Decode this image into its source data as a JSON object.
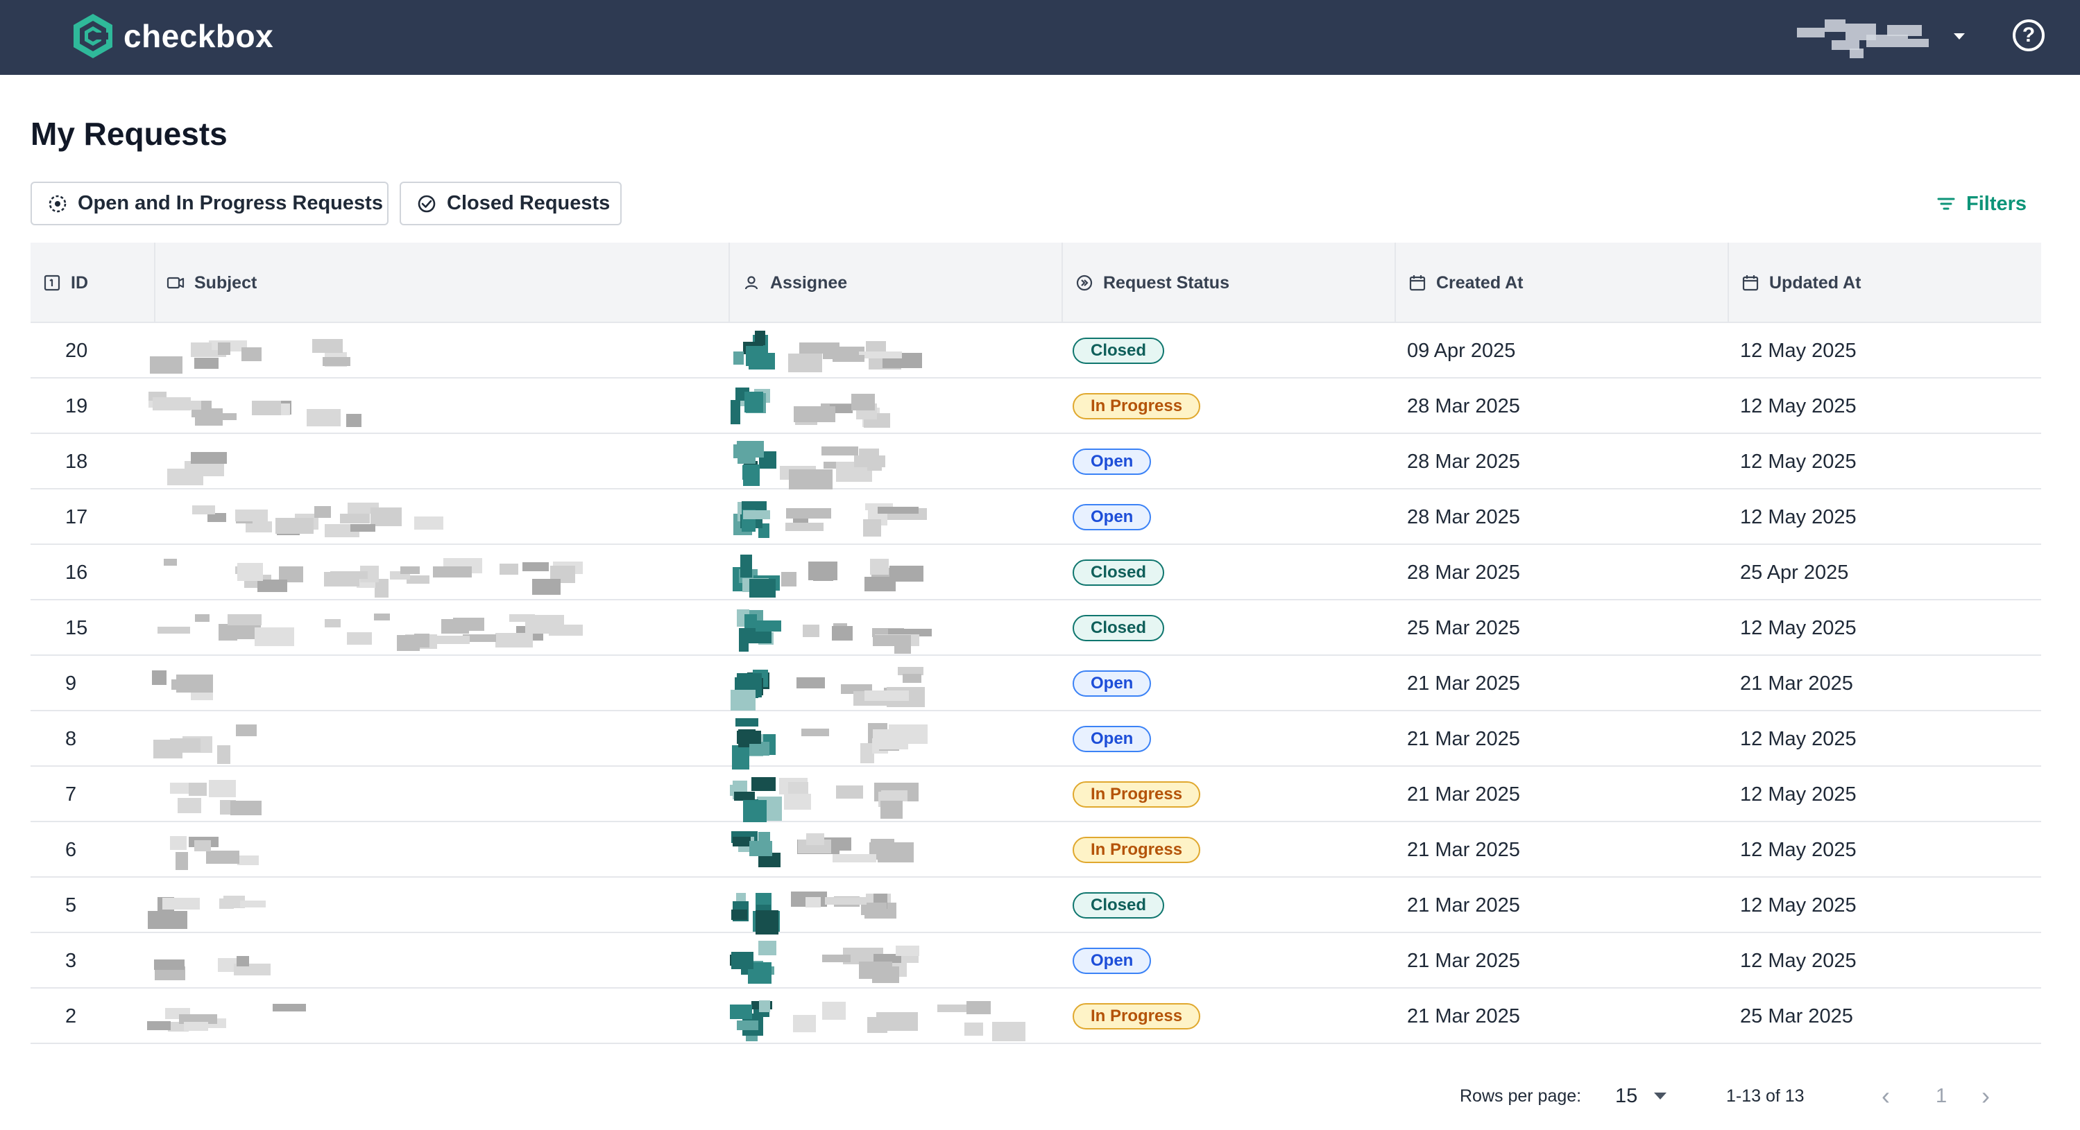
{
  "app": {
    "name": "checkbox",
    "brand_color": "#2fb99a",
    "header_bg": "#2e3a52",
    "accent": "#0d9478"
  },
  "header": {
    "user_menu_icon": "chevron-down-icon",
    "help_icon": "help-circle-icon",
    "help_glyph": "?"
  },
  "page": {
    "title": "My Requests"
  },
  "tabs": {
    "open_label": "Open and In Progress Requests",
    "closed_label": "Closed Requests",
    "filters_label": "Filters"
  },
  "table": {
    "columns": {
      "id": "ID",
      "subject": "Subject",
      "assignee": "Assignee",
      "status": "Request Status",
      "created": "Created At",
      "updated": "Updated At"
    },
    "rows": [
      {
        "id": "20",
        "status": "Closed",
        "created": "09 Apr 2025",
        "updated": "12 May 2025"
      },
      {
        "id": "19",
        "status": "In Progress",
        "created": "28 Mar 2025",
        "updated": "12 May 2025"
      },
      {
        "id": "18",
        "status": "Open",
        "created": "28 Mar 2025",
        "updated": "12 May 2025"
      },
      {
        "id": "17",
        "status": "Open",
        "created": "28 Mar 2025",
        "updated": "12 May 2025"
      },
      {
        "id": "16",
        "status": "Closed",
        "created": "28 Mar 2025",
        "updated": "25 Apr 2025"
      },
      {
        "id": "15",
        "status": "Closed",
        "created": "25 Mar 2025",
        "updated": "12 May 2025"
      },
      {
        "id": "9",
        "status": "Open",
        "created": "21 Mar 2025",
        "updated": "21 Mar 2025"
      },
      {
        "id": "8",
        "status": "Open",
        "created": "21 Mar 2025",
        "updated": "12 May 2025"
      },
      {
        "id": "7",
        "status": "In Progress",
        "created": "21 Mar 2025",
        "updated": "12 May 2025"
      },
      {
        "id": "6",
        "status": "In Progress",
        "created": "21 Mar 2025",
        "updated": "12 May 2025"
      },
      {
        "id": "5",
        "status": "Closed",
        "created": "21 Mar 2025",
        "updated": "12 May 2025"
      },
      {
        "id": "3",
        "status": "Open",
        "created": "21 Mar 2025",
        "updated": "12 May 2025"
      },
      {
        "id": "2",
        "status": "In Progress",
        "created": "21 Mar 2025",
        "updated": "25 Mar 2025"
      }
    ]
  },
  "pagination": {
    "rows_per_page_label": "Rows per page:",
    "rows_per_page": "15",
    "range": "1-13 of 13",
    "current_page": "1",
    "prev_glyph": "‹",
    "next_glyph": "›"
  }
}
